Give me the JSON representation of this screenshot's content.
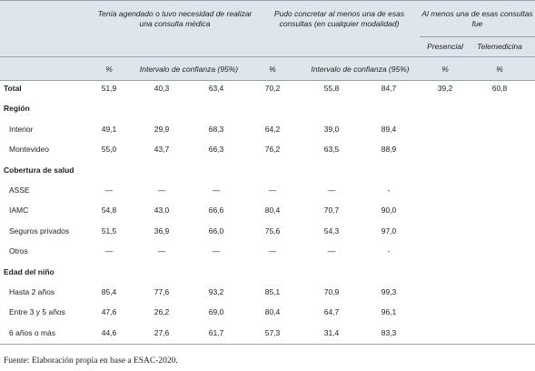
{
  "table": {
    "groups": [
      "Tenía agendado o tuvo necesidad de realizar una consulta médica",
      "Pudo concretar al menos una de esas consultas (en cualquier modalidad)",
      "Al menos una de esas consultas fue"
    ],
    "subheaders": [
      "Presencial",
      "Telemedicina"
    ],
    "columns": [
      "%",
      "Intervalo de confianza (95%)",
      "%",
      "Intervalo de confianza (95%)",
      "%",
      "%"
    ],
    "rows": [
      {
        "label": "Total",
        "bold": true,
        "cells": [
          "51,9",
          "40,3",
          "63,4",
          "70,2",
          "55,8",
          "84,7",
          "39,2",
          "60,8"
        ]
      },
      {
        "label": "Región",
        "bold": true
      },
      {
        "label": "Interior",
        "cells": [
          "49,1",
          "29,9",
          "68,3",
          "64,2",
          "39,0",
          "89,4"
        ]
      },
      {
        "label": "Montevideo",
        "cells": [
          "55,0",
          "43,7",
          "66,3",
          "76,2",
          "63,5",
          "88,9"
        ]
      },
      {
        "label": "Cobertura de salud",
        "bold": true
      },
      {
        "label": "ASSE",
        "cells": [
          "—",
          "—",
          "—",
          "—",
          "—",
          "-"
        ]
      },
      {
        "label": "IAMC",
        "cells": [
          "54,8",
          "43,0",
          "66,6",
          "80,4",
          "70,7",
          "90,0"
        ]
      },
      {
        "label": "Seguros privados",
        "cells": [
          "51,5",
          "36,9",
          "66,0",
          "75,6",
          "54,3",
          "97,0"
        ]
      },
      {
        "label": "Otros",
        "cells": [
          "—",
          "—",
          "—",
          "—",
          "—",
          "-"
        ]
      },
      {
        "label": "Edad del niño",
        "bold": true
      },
      {
        "label": "Hasta 2 años",
        "cells": [
          "85,4",
          "77,6",
          "93,2",
          "85,1",
          "70,9",
          "99,3"
        ]
      },
      {
        "label": "Entre 3 y 5 años",
        "cells": [
          "47,6",
          "26,2",
          "69,0",
          "80,4",
          "64,7",
          "96,1"
        ]
      },
      {
        "label": "6 años o más",
        "cells": [
          "44,6",
          "27,6",
          "61,7",
          "57,3",
          "31,4",
          "83,3"
        ]
      }
    ]
  },
  "footer": "Fuente: Elaboración propia en base a ESAC-2020."
}
